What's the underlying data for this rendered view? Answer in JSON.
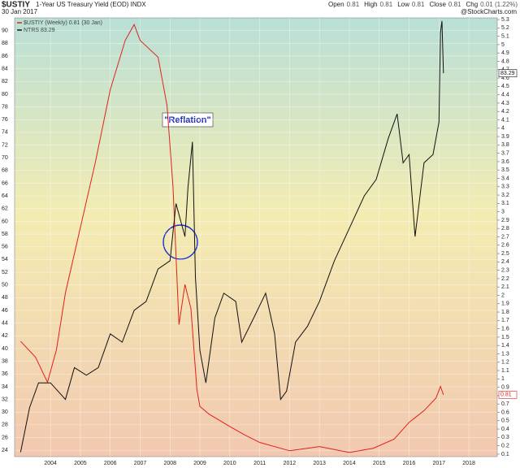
{
  "chart_data": {
    "type": "line",
    "symbol": "$USTIY",
    "title": "1-Year US Treasury Yield (EOD) INDX",
    "date": "30 Jan 2017",
    "quote": [
      {
        "label": "Open",
        "value": "0.81"
      },
      {
        "label": "High",
        "value": "0.81"
      },
      {
        "label": "Low",
        "value": "0.81"
      },
      {
        "label": "Close",
        "value": "0.81"
      },
      {
        "label": "Chg",
        "value": "0.01 (1.22%)"
      }
    ],
    "source": "@StockCharts.com",
    "annotation": "\"Reflation\"",
    "xlim": [
      2002.8,
      2018.95
    ],
    "xticks": [
      2004,
      2005,
      2006,
      2007,
      2008,
      2009,
      2010,
      2011,
      2012,
      2013,
      2014,
      2015,
      2016,
      2017,
      2018
    ],
    "ylim": [
      23,
      92
    ],
    "yticks": [
      24,
      26,
      28,
      30,
      32,
      34,
      36,
      38,
      40,
      42,
      44,
      46,
      48,
      50,
      52,
      54,
      56,
      58,
      60,
      62,
      64,
      66,
      68,
      70,
      72,
      74,
      76,
      78,
      80,
      82,
      84,
      86,
      88,
      90
    ],
    "y2lim": [
      0.07,
      5.32
    ],
    "y2ticks": [
      0.1,
      0.2,
      0.3,
      0.4,
      0.5,
      0.6,
      0.7,
      0.8,
      0.9,
      1.0,
      1.1,
      1.2,
      1.3,
      1.4,
      1.5,
      1.6,
      1.7,
      1.8,
      1.9,
      2.0,
      2.1,
      2.2,
      2.3,
      2.4,
      2.5,
      2.6,
      2.7,
      2.8,
      2.9,
      3.0,
      3.1,
      3.2,
      3.3,
      3.4,
      3.5,
      3.6,
      3.7,
      3.8,
      3.9,
      4.0,
      4.1,
      4.2,
      4.3,
      4.4,
      4.5,
      4.6,
      4.7,
      4.8,
      4.9,
      5.0,
      5.1,
      5.2,
      5.3
    ],
    "grid": true,
    "series": [
      {
        "name": "$USTIY (Weekly) 0.81 (30 Jan)",
        "color": "#e0201b",
        "axis": "y2",
        "x": [
          2003.0,
          2003.5,
          2003.9,
          2004.2,
          2004.5,
          2005.0,
          2005.5,
          2006.0,
          2006.5,
          2006.8,
          2007.0,
          2007.3,
          2007.6,
          2007.9,
          2008.1,
          2008.3,
          2008.5,
          2008.7,
          2008.9,
          2009.0,
          2009.3,
          2010.0,
          2010.5,
          2011.0,
          2012.0,
          2013.0,
          2014.0,
          2014.8,
          2015.5,
          2016.0,
          2016.5,
          2016.9,
          2017.05,
          2017.15
        ],
        "values": [
          1.45,
          1.26,
          0.96,
          1.35,
          2.03,
          2.81,
          3.59,
          4.46,
          5.05,
          5.24,
          5.05,
          4.95,
          4.85,
          4.27,
          3.3,
          1.65,
          2.13,
          1.84,
          0.87,
          0.67,
          0.58,
          0.43,
          0.33,
          0.24,
          0.14,
          0.19,
          0.12,
          0.17,
          0.28,
          0.48,
          0.62,
          0.77,
          0.91,
          0.81
        ]
      },
      {
        "name": "NTRS 83.29",
        "color": "#111111",
        "x": [
          2003.0,
          2003.3,
          2003.6,
          2004.0,
          2004.5,
          2004.8,
          2005.2,
          2005.6,
          2006.0,
          2006.4,
          2006.8,
          2007.2,
          2007.6,
          2008.0,
          2008.2,
          2008.5,
          2008.6,
          2008.75,
          2008.85,
          2009.0,
          2009.2,
          2009.5,
          2009.8,
          2010.2,
          2010.4,
          2010.8,
          2011.2,
          2011.5,
          2011.7,
          2011.9,
          2012.2,
          2012.6,
          2013.0,
          2013.5,
          2014.0,
          2014.5,
          2014.9,
          2015.3,
          2015.6,
          2015.8,
          2016.0,
          2016.2,
          2016.5,
          2016.8,
          2017.0,
          2017.05,
          2017.1,
          2017.15
        ],
        "values": [
          23.7,
          30.7,
          34.6,
          34.6,
          32,
          37,
          35.8,
          37,
          42.3,
          41,
          46,
          47.4,
          52.5,
          53.8,
          62.8,
          57.6,
          65.3,
          72.5,
          51.2,
          39.7,
          34.6,
          44.8,
          48.7,
          47.4,
          41,
          44.8,
          48.7,
          42.3,
          32,
          33.3,
          41,
          43.5,
          47.4,
          53.8,
          58.9,
          64,
          66.6,
          73,
          76.9,
          69.2,
          70.5,
          57.6,
          69.2,
          70.5,
          75.6,
          89.7,
          91.5,
          83.29
        ]
      }
    ]
  }
}
